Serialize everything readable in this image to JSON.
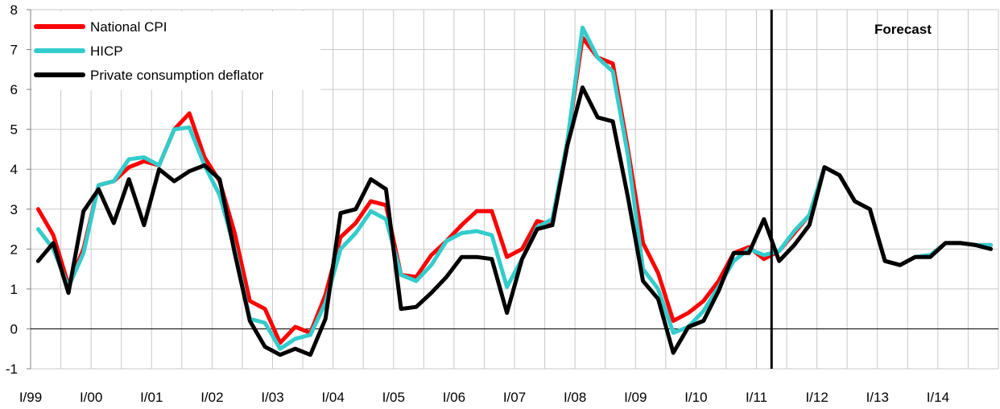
{
  "chart_data": {
    "type": "line",
    "title": "",
    "xlabel": "",
    "ylabel": "",
    "ylim": [
      -1,
      8
    ],
    "yticks": [
      "-1",
      "0",
      "1",
      "2",
      "3",
      "4",
      "5",
      "6",
      "7",
      "8"
    ],
    "xtick_labels": [
      "I/99",
      "I/00",
      "I/01",
      "I/02",
      "I/03",
      "I/04",
      "I/05",
      "I/06",
      "I/07",
      "I/08",
      "I/09",
      "I/10",
      "I/11",
      "I/12",
      "I/13",
      "I/14"
    ],
    "grid": true,
    "legend_position": "top-left",
    "forecast_label": "Forecast",
    "forecast_start_quarter": 49,
    "series": [
      {
        "name": "National CPI",
        "color": "#ff0000",
        "values": [
          3.0,
          2.35,
          1.1,
          2.0,
          3.6,
          3.7,
          4.05,
          4.2,
          4.1,
          5.0,
          5.4,
          4.3,
          3.7,
          2.4,
          0.7,
          0.5,
          -0.35,
          0.05,
          -0.1,
          0.85,
          2.3,
          2.65,
          3.2,
          3.1,
          1.35,
          1.3,
          1.85,
          2.2,
          2.6,
          2.95,
          2.95,
          1.8,
          2.0,
          2.7,
          2.6,
          4.7,
          7.3,
          6.8,
          6.65,
          4.5,
          2.15,
          1.4,
          0.2,
          0.4,
          0.7,
          1.2,
          1.9,
          2.05,
          1.75,
          1.95,
          2.4,
          2.85,
          4.05,
          3.85,
          3.2,
          3.0,
          1.7,
          1.6,
          1.8,
          1.85,
          2.15,
          2.15,
          2.1,
          2.1
        ]
      },
      {
        "name": "HICP",
        "color": "#33cccc",
        "values": [
          2.5,
          2.0,
          1.05,
          1.9,
          3.6,
          3.7,
          4.25,
          4.3,
          4.1,
          5.0,
          5.05,
          4.1,
          3.35,
          2.0,
          0.25,
          0.15,
          -0.5,
          -0.25,
          -0.15,
          0.65,
          2.0,
          2.4,
          2.95,
          2.75,
          1.35,
          1.2,
          1.6,
          2.2,
          2.4,
          2.45,
          2.35,
          1.05,
          1.75,
          2.55,
          2.75,
          4.7,
          7.55,
          6.8,
          6.45,
          4.35,
          1.5,
          1.0,
          -0.1,
          0.05,
          0.45,
          1.05,
          1.7,
          2.0,
          1.85,
          1.95,
          2.45,
          2.85,
          4.05,
          3.85,
          3.2,
          3.0,
          1.7,
          1.6,
          1.8,
          1.85,
          2.15,
          2.15,
          2.1,
          2.1
        ]
      },
      {
        "name": "Private consumption deflator",
        "color": "#000000",
        "values": [
          1.7,
          2.15,
          0.9,
          2.95,
          3.5,
          2.65,
          3.75,
          2.6,
          4.0,
          3.7,
          3.95,
          4.1,
          3.75,
          1.9,
          0.2,
          -0.45,
          -0.65,
          -0.5,
          -0.65,
          0.25,
          2.9,
          3.0,
          3.75,
          3.5,
          0.5,
          0.55,
          0.9,
          1.3,
          1.8,
          1.8,
          1.75,
          0.4,
          1.75,
          2.5,
          2.6,
          4.6,
          6.05,
          5.3,
          5.2,
          3.3,
          1.2,
          0.75,
          -0.6,
          0.05,
          0.2,
          0.95,
          1.9,
          1.9,
          2.75,
          1.7,
          2.1,
          2.6,
          4.05,
          3.85,
          3.2,
          3.0,
          1.7,
          1.6,
          1.8,
          1.8,
          2.15,
          2.15,
          2.1,
          2.0
        ]
      }
    ]
  }
}
